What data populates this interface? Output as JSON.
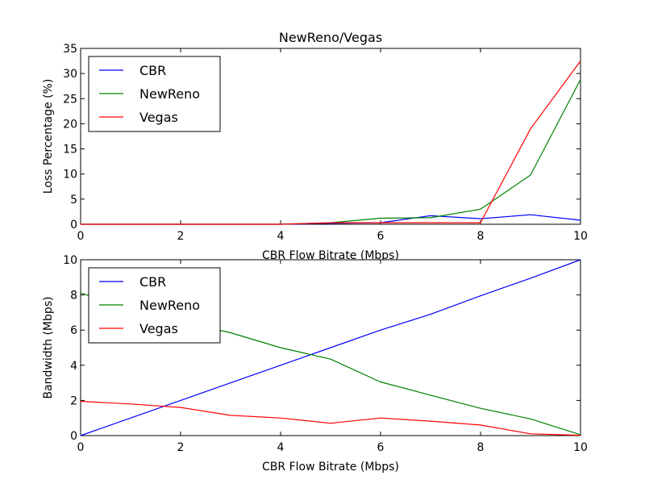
{
  "chart_data": [
    {
      "type": "line",
      "title": "NewReno/Vegas",
      "xlabel": "CBR Flow Bitrate (Mbps)",
      "ylabel": "Loss Percentage (%)",
      "xlim": [
        0,
        10
      ],
      "ylim": [
        0,
        35
      ],
      "xticks": [
        "0",
        "2",
        "4",
        "6",
        "8",
        "10"
      ],
      "yticks": [
        "0",
        "5",
        "10",
        "15",
        "20",
        "25",
        "30",
        "35"
      ],
      "legend": "top-left",
      "x": [
        0,
        1,
        2,
        3,
        4,
        5,
        6,
        7,
        8,
        9,
        10
      ],
      "series": [
        {
          "name": "CBR",
          "color": "#0000ff",
          "values": [
            0,
            0,
            0,
            0,
            0,
            0.2,
            0.3,
            1.7,
            1.1,
            1.9,
            0.8
          ]
        },
        {
          "name": "NewReno",
          "color": "#008000",
          "values": [
            0,
            0,
            0,
            0,
            0,
            0.3,
            1.2,
            1.3,
            3.0,
            9.8,
            28.8
          ]
        },
        {
          "name": "Vegas",
          "color": "#ff0000",
          "values": [
            0,
            0,
            0,
            0,
            0,
            0.3,
            0.3,
            0.3,
            0.3,
            19.0,
            32.5
          ]
        }
      ]
    },
    {
      "type": "line",
      "title": "",
      "xlabel": "CBR Flow Bitrate (Mbps)",
      "ylabel": "Bandwidth (Mbps)",
      "xlim": [
        0,
        10
      ],
      "ylim": [
        0,
        10
      ],
      "xticks": [
        "0",
        "2",
        "4",
        "6",
        "8",
        "10"
      ],
      "yticks": [
        "0",
        "2",
        "4",
        "6",
        "8",
        "10"
      ],
      "legend": "top-left",
      "x": [
        0,
        1,
        2,
        3,
        4,
        5,
        6,
        7,
        8,
        9,
        10
      ],
      "series": [
        {
          "name": "CBR",
          "color": "#0000ff",
          "values": [
            0,
            1.0,
            2.0,
            3.0,
            4.0,
            5.0,
            6.0,
            6.9,
            7.95,
            8.95,
            10.0
          ]
        },
        {
          "name": "NewReno",
          "color": "#008000",
          "values": [
            8.1,
            7.3,
            6.5,
            5.85,
            5.0,
            4.35,
            3.05,
            2.3,
            1.55,
            0.95,
            0.05
          ]
        },
        {
          "name": "Vegas",
          "color": "#ff0000",
          "values": [
            1.95,
            1.8,
            1.6,
            1.15,
            1.0,
            0.7,
            1.0,
            0.82,
            0.6,
            0.1,
            0.02
          ]
        }
      ]
    }
  ]
}
